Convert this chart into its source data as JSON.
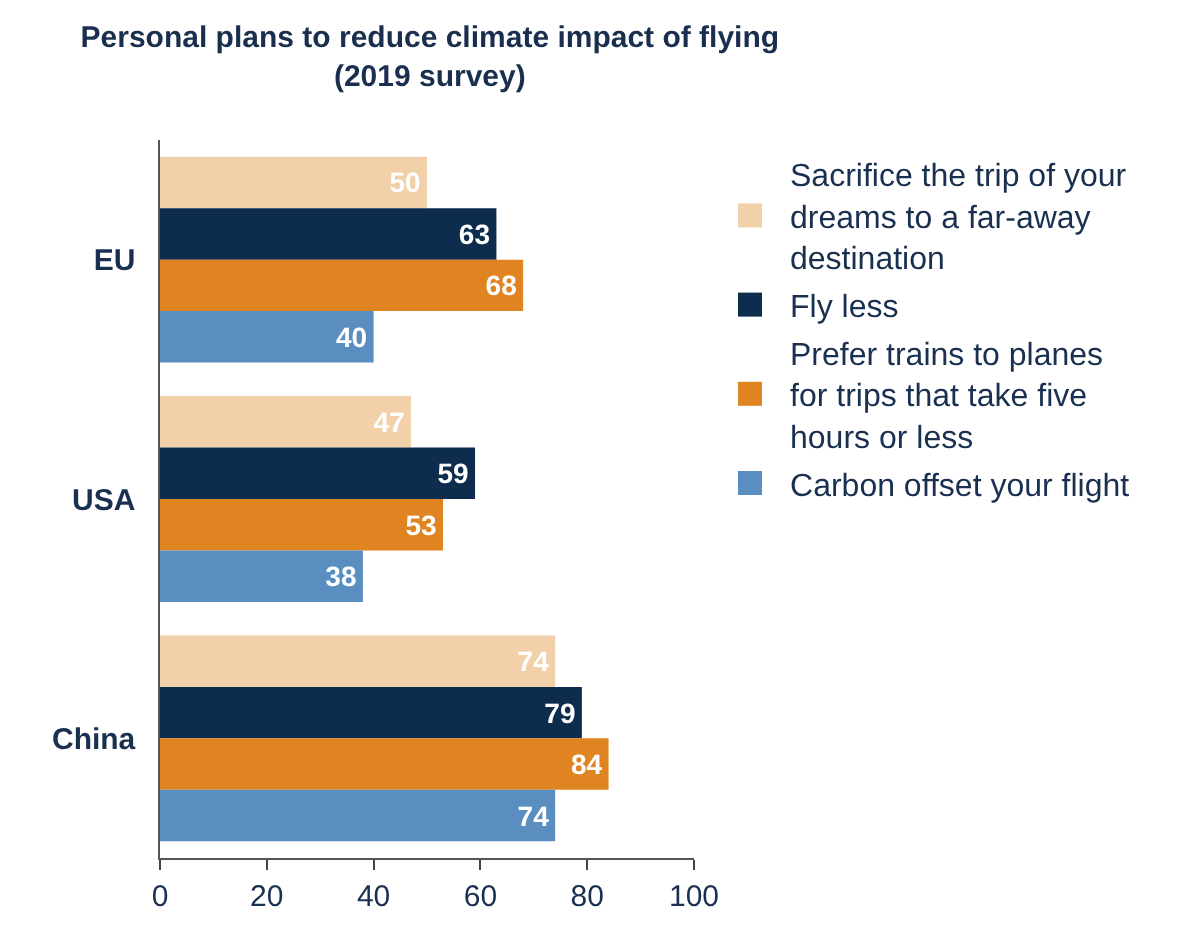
{
  "chart_data": {
    "type": "bar",
    "orientation": "horizontal",
    "title": "Personal plans to reduce climate impact of flying\n(2019 survey)",
    "categories": [
      "EU",
      "USA",
      "China"
    ],
    "series": [
      {
        "name": "Sacrifice the trip of your dreams to a far-away destination",
        "color": "#f2d0a9",
        "values": [
          50,
          47,
          74
        ]
      },
      {
        "name": "Fly less",
        "color": "#0e2c4e",
        "values": [
          63,
          59,
          79
        ]
      },
      {
        "name": "Prefer trains to planes for trips that take five hours or less",
        "color": "#df8420",
        "values": [
          68,
          53,
          84
        ]
      },
      {
        "name": "Carbon offset your flight",
        "color": "#5b8ec0",
        "values": [
          40,
          38,
          74
        ]
      }
    ],
    "xlim": [
      0,
      100
    ],
    "xticks": [
      0,
      20,
      40,
      60,
      80,
      100
    ],
    "data_labels": true,
    "legend": "right"
  }
}
